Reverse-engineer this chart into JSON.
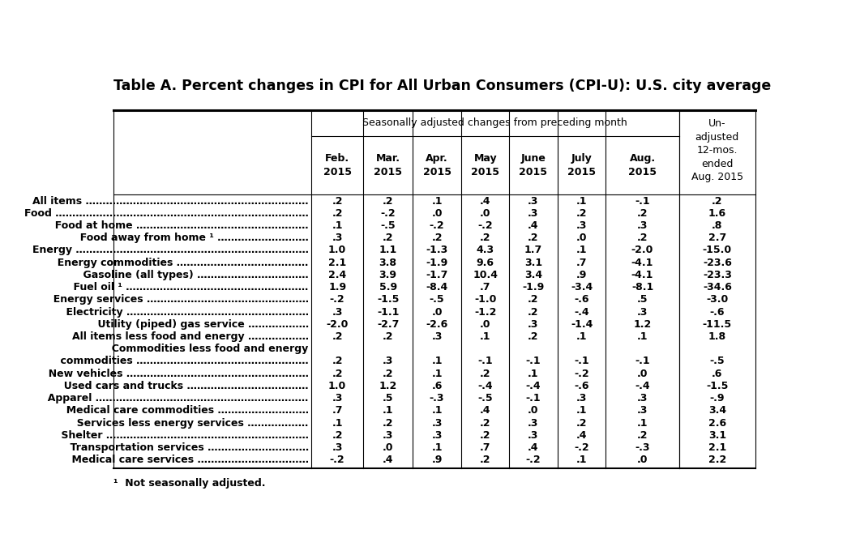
{
  "title": "Table A. Percent changes in CPI for All Urban Consumers (CPI-U): U.S. city average",
  "seasonal_header": "Seasonally adjusted changes from preceding month",
  "unadj_header": "Un-\nadjusted\n12-mos.\nended\nAug. 2015",
  "month_headers": [
    "Feb.\n2015",
    "Mar.\n2015",
    "Apr.\n2015",
    "May\n2015",
    "June\n2015",
    "July\n2015",
    "Aug.\n2015"
  ],
  "rows": [
    [
      "All items …………………………………………………………",
      ".2",
      ".2",
      ".1",
      ".4",
      ".3",
      ".1",
      "-.1",
      ".2"
    ],
    [
      "Food …………………………………………………………………",
      ".2",
      "-.2",
      ".0",
      ".0",
      ".3",
      ".2",
      ".2",
      "1.6"
    ],
    [
      "  Food at home ……………………………………………",
      ".1",
      "-.5",
      "-.2",
      "-.2",
      ".4",
      ".3",
      ".3",
      ".8"
    ],
    [
      "  Food away from home ¹ ………………………",
      ".3",
      ".2",
      ".2",
      ".2",
      ".2",
      ".0",
      ".2",
      "2.7"
    ],
    [
      "Energy ……………………………………………………………",
      "1.0",
      "1.1",
      "-1.3",
      "4.3",
      "1.7",
      ".1",
      "-2.0",
      "-15.0"
    ],
    [
      "  Energy commodities …………………………………",
      "2.1",
      "3.8",
      "-1.9",
      "9.6",
      "3.1",
      ".7",
      "-4.1",
      "-23.6"
    ],
    [
      "    Gasoline (all types) ……………………………",
      "2.4",
      "3.9",
      "-1.7",
      "10.4",
      "3.4",
      ".9",
      "-4.1",
      "-23.3"
    ],
    [
      "    Fuel oil ¹ ………………………………………………",
      "1.9",
      "5.9",
      "-8.4",
      ".7",
      "-1.9",
      "-3.4",
      "-8.1",
      "-34.6"
    ],
    [
      "  Energy services …………………………………………",
      "-.2",
      "-1.5",
      "-.5",
      "-1.0",
      ".2",
      "-.6",
      ".5",
      "-3.0"
    ],
    [
      "    Electricity ………………………………………………",
      ".3",
      "-1.1",
      ".0",
      "-1.2",
      ".2",
      "-.4",
      ".3",
      "-.6"
    ],
    [
      "    Utility (piped) gas service ………………",
      "-2.0",
      "-2.7",
      "-2.6",
      ".0",
      ".3",
      "-1.4",
      "1.2",
      "-11.5"
    ],
    [
      "All items less food and energy ………………",
      ".2",
      ".2",
      ".3",
      ".1",
      ".2",
      ".1",
      ".1",
      "1.8"
    ],
    [
      "  Commodities less food and energy",
      "",
      "",
      "",
      "",
      "",
      "",
      "",
      ""
    ],
    [
      "    commodities ……………………………………………",
      ".2",
      ".3",
      ".1",
      "-.1",
      "-.1",
      "-.1",
      "-.1",
      "-.5"
    ],
    [
      "  New vehicles ………………………………………………",
      ".2",
      ".2",
      ".1",
      ".2",
      ".1",
      "-.2",
      ".0",
      ".6"
    ],
    [
      "  Used cars and trucks ………………………………",
      "1.0",
      "1.2",
      ".6",
      "-.4",
      "-.4",
      "-.6",
      "-.4",
      "-1.5"
    ],
    [
      "  Apparel ………………………………………………………",
      ".3",
      ".5",
      "-.3",
      "-.5",
      "-.1",
      ".3",
      ".3",
      "-.9"
    ],
    [
      "  Medical care commodities ………………………",
      ".7",
      ".1",
      ".1",
      ".4",
      ".0",
      ".1",
      ".3",
      "3.4"
    ],
    [
      "  Services less energy services ………………",
      ".1",
      ".2",
      ".3",
      ".2",
      ".3",
      ".2",
      ".1",
      "2.6"
    ],
    [
      "    Shelter ……………………………………………………",
      ".2",
      ".3",
      ".3",
      ".2",
      ".3",
      ".4",
      ".2",
      "3.1"
    ],
    [
      "    Transportation services …………………………",
      ".3",
      ".0",
      ".1",
      ".7",
      ".4",
      "-.2",
      "-.3",
      "2.1"
    ],
    [
      "    Medical care services ……………………………",
      "-.2",
      ".4",
      ".9",
      ".2",
      "-.2",
      ".1",
      ".0",
      "2.2"
    ]
  ],
  "footnote": "¹  Not seasonally adjusted.",
  "bg_color": "#FFFFFF",
  "text_color": "#000000",
  "title_fontsize": 12.5,
  "body_fontsize": 9.0,
  "header_fontsize": 9.0
}
